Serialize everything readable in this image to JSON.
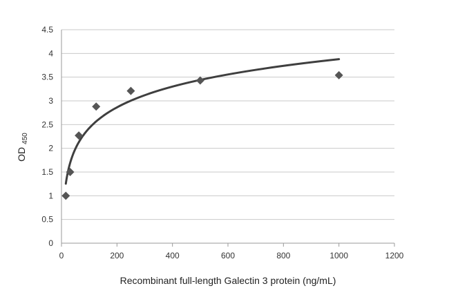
{
  "chart_data": {
    "type": "scatter",
    "title": "",
    "xlabel": "Recombinant full-length Galectin 3 protein (ng/mL)",
    "ylabel_main": "OD",
    "ylabel_sub": "450",
    "xlim": [
      0,
      1200
    ],
    "ylim": [
      0,
      4.5
    ],
    "xticks": [
      0,
      200,
      400,
      600,
      800,
      1000,
      1200
    ],
    "yticks": [
      0,
      0.5,
      1,
      1.5,
      2,
      2.5,
      3,
      3.5,
      4,
      4.5
    ],
    "ytick_labels": [
      "0",
      "0.5",
      "1",
      "1.5",
      "2",
      "2.5",
      "3",
      "3.5",
      "4",
      "4.5"
    ],
    "grid": "horizontal",
    "legend": "none",
    "marker": "diamond",
    "series": [
      {
        "x": [
          15.6,
          31.25,
          62.5,
          125,
          250,
          500,
          1000
        ],
        "y": [
          1.0,
          1.5,
          2.27,
          2.88,
          3.21,
          3.43,
          3.54
        ]
      }
    ],
    "trendline": {
      "type": "logarithmic",
      "x_start": 15.6,
      "x_end": 1000,
      "a": 0.631,
      "b": -0.48
    },
    "colors": {
      "points": "#555555",
      "trendline": "#3f3f3f",
      "grid": "#c9c9c9"
    }
  }
}
